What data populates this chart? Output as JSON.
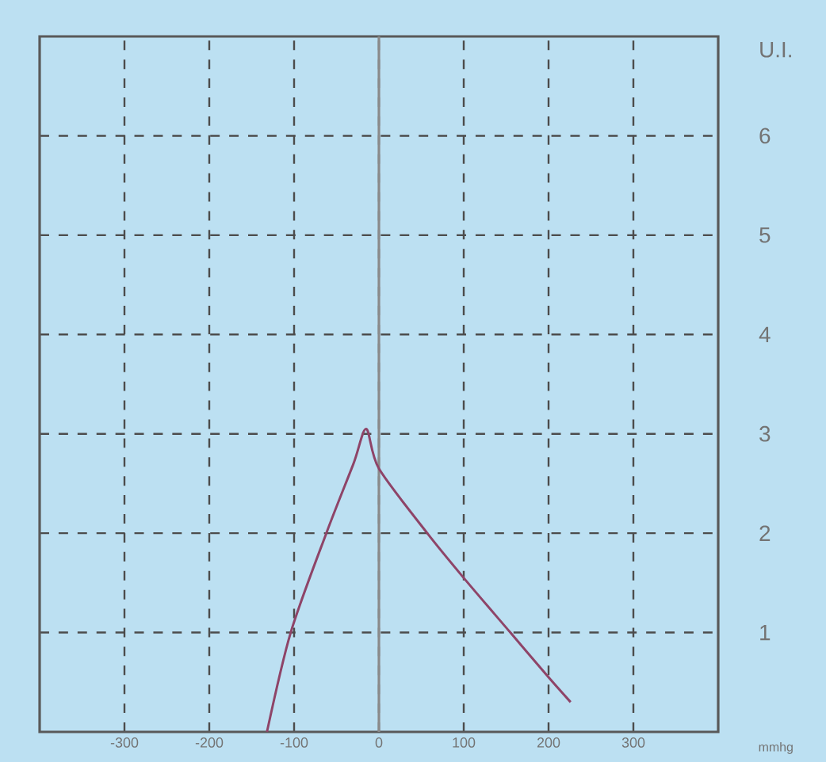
{
  "chart_data": {
    "type": "line",
    "xlabel": "mmhg",
    "ylabel": "U.I.",
    "x": [
      -132,
      -104,
      -62,
      -30,
      -15,
      0,
      57,
      100,
      155,
      200,
      226
    ],
    "series": [
      {
        "color": "#8e4468",
        "values": [
          0,
          1,
          2,
          2.7,
          3.05,
          2.65,
          2,
          1.55,
          1,
          0.55,
          0.3
        ]
      }
    ],
    "xlim": [
      -400,
      400
    ],
    "ylim": [
      0,
      7
    ],
    "xticks": [
      -300,
      -200,
      -100,
      0,
      100,
      200,
      300
    ],
    "yticks": [
      1,
      2,
      3,
      4,
      5,
      6
    ],
    "grid": true,
    "marker": "none",
    "line_style": "solid",
    "ref_lines": [
      {
        "axis": "x",
        "value": 0,
        "color": "#8a8a8a",
        "line_style": "solid"
      }
    ]
  }
}
